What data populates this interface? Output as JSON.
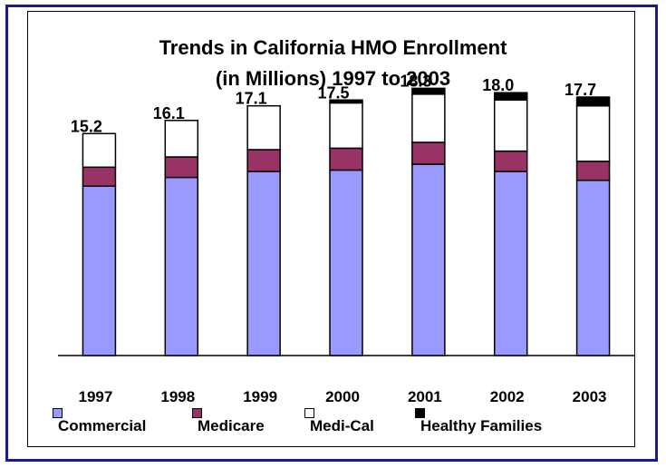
{
  "chart_data": {
    "type": "bar",
    "stacked": true,
    "title": "Trends in California HMO Enrollment",
    "subtitle": "(in Millions) 1997 to 2003",
    "categories": [
      "1997",
      "1998",
      "1999",
      "2000",
      "2001",
      "2002",
      "2003"
    ],
    "totals": [
      15.2,
      16.1,
      17.1,
      17.5,
      18.3,
      18.0,
      17.7
    ],
    "total_labels": [
      "15.2",
      "16.1",
      "17.1",
      "17.5",
      "18.3",
      "18.0",
      "17.7"
    ],
    "series": [
      {
        "name": "Commercial",
        "color": "#9999ff",
        "values": [
          11.6,
          12.2,
          12.6,
          12.7,
          13.1,
          12.6,
          12.0
        ]
      },
      {
        "name": "Medicare",
        "color": "#993366",
        "values": [
          1.3,
          1.4,
          1.5,
          1.5,
          1.5,
          1.4,
          1.3
        ]
      },
      {
        "name": "Medi-Cal",
        "color": "#ffffff",
        "values": [
          2.3,
          2.5,
          3.0,
          3.1,
          3.3,
          3.5,
          3.8
        ]
      },
      {
        "name": "Healthy Families",
        "color": "#000000",
        "values": [
          0.0,
          0.0,
          0.0,
          0.2,
          0.4,
          0.5,
          0.6
        ]
      }
    ],
    "ylim": [
      0,
      20
    ],
    "grid": false,
    "legend_position": "bottom"
  }
}
